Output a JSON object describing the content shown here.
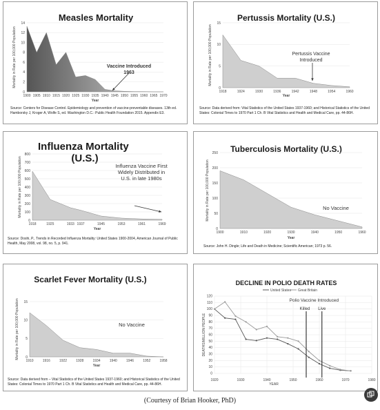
{
  "chart_data": [
    {
      "id": "measles",
      "type": "area",
      "title": "Measles Mortality",
      "xlabel": "Year",
      "ylabel": "Mortality in Rate per 100,000 Population",
      "x_ticks": [
        "1900",
        "1905",
        "1910",
        "1915",
        "1920",
        "1925",
        "1930",
        "1935",
        "1940",
        "1945",
        "1950",
        "1955",
        "1960",
        "1965",
        "1970"
      ],
      "y_ticks": [
        "0",
        "2",
        "4",
        "6",
        "8",
        "10",
        "12",
        "14"
      ],
      "x": [
        1900,
        1905,
        1910,
        1915,
        1920,
        1925,
        1930,
        1935,
        1940,
        1945,
        1950,
        1955,
        1960,
        1965,
        1970
      ],
      "values": [
        13.3,
        8,
        12,
        5.5,
        8,
        3,
        3.3,
        2.5,
        0.5,
        0.2,
        0.1,
        0.05,
        0.05,
        0,
        0
      ],
      "xlim": [
        1900,
        1970
      ],
      "ylim": [
        0,
        14
      ],
      "annotation": [
        "Vaccine Introduced",
        "1963"
      ],
      "source": "Source: Centers for Disease Control. Epidemiology and prevention of vaccine-preventable diseases. 13th ed. Hamborsky J, Kroger A, Wolfe S, ed. Washington D.C.: Public Health Foundation 2015. Appendix E3."
    },
    {
      "id": "pertussis",
      "type": "area",
      "title": "Pertussis Mortality (U.S.)",
      "xlabel": "Year",
      "ylabel": "Mortality in Rate per 100,000 Population",
      "x_ticks": [
        "1918",
        "1924",
        "1930",
        "1936",
        "1942",
        "1948",
        "1954",
        "1960"
      ],
      "y_ticks": [
        "0",
        "5",
        "10",
        "15"
      ],
      "x": [
        1918,
        1924,
        1930,
        1936,
        1942,
        1948,
        1954,
        1960
      ],
      "values": [
        12.2,
        6.3,
        5,
        2.2,
        2.2,
        1,
        0.5,
        0.2
      ],
      "xlim": [
        1918,
        1960
      ],
      "ylim": [
        0,
        15
      ],
      "annotation": [
        "Pertussis Vaccine",
        "Introduced"
      ],
      "source": "Source: Data derived from: Vital Statistics of the United States 1937-1960; and Historical Statistics of the United States: Colonial Times to 1970 Part 1 Ch. B Vital Statistics and Health and Medical Care, pp. 44-86H."
    },
    {
      "id": "influenza",
      "type": "area",
      "title": [
        "Influenza Mortality",
        "(U.S.)"
      ],
      "xlabel": "Year",
      "ylabel": "Mortality in Rate per 100,000 Population",
      "x_ticks": [
        "1918",
        "1925",
        "1933",
        "1937",
        "1945",
        "1953",
        "1961",
        "1969"
      ],
      "y_ticks": [
        "0",
        "100",
        "200",
        "300",
        "400",
        "500",
        "600",
        "700",
        "800"
      ],
      "x": [
        1918,
        1925,
        1933,
        1937,
        1945,
        1953,
        1961,
        1969
      ],
      "values": [
        590,
        250,
        150,
        120,
        50,
        25,
        15,
        10
      ],
      "xlim": [
        1918,
        1969
      ],
      "ylim": [
        0,
        800
      ],
      "annotation": [
        "Influenza Vaccine First",
        "Widely Distributed in",
        "U.S. in late 1980s"
      ],
      "source": "Source: Doshi, P., Trends in Recorded Influenza Mortality: United States 1900-2004, American Journal of Public Health, May 2008, vol. 98, no. 5, p. 941."
    },
    {
      "id": "tuberculosis",
      "type": "area",
      "title": "Tuberculosis Mortality (U.S.)",
      "xlabel": "Year",
      "ylabel": "Mortality in Rate per 100,000 Population",
      "x_ticks": [
        "1900",
        "1910",
        "1920",
        "1930",
        "1940",
        "1950",
        "1960"
      ],
      "y_ticks": [
        "0",
        "50",
        "100",
        "150",
        "200",
        "250"
      ],
      "x": [
        1900,
        1910,
        1920,
        1930,
        1940,
        1950,
        1960
      ],
      "values": [
        190,
        160,
        115,
        70,
        45,
        25,
        5
      ],
      "xlim": [
        1900,
        1960
      ],
      "ylim": [
        0,
        250
      ],
      "annotation": [
        "No Vaccine"
      ],
      "source": "Source: John H. Dingle; Life and Death in Medicine; Scientific American; 1973 p. 56."
    },
    {
      "id": "scarlet",
      "type": "area",
      "title": "Scarlet Fever Mortality (U.S.)",
      "xlabel": "Year",
      "ylabel": "Mortality in Rate per 100,000 Population",
      "x_ticks": [
        "1910",
        "1916",
        "1922",
        "1928",
        "1934",
        "1940",
        "1946",
        "1952",
        "1958"
      ],
      "y_ticks": [
        "0",
        "5",
        "10",
        "15"
      ],
      "x": [
        1910,
        1916,
        1922,
        1928,
        1934,
        1940,
        1946,
        1952,
        1958
      ],
      "values": [
        12,
        8.5,
        4.5,
        2.5,
        2,
        1,
        1,
        0.2,
        0
      ],
      "xlim": [
        1910,
        1958
      ],
      "ylim": [
        0,
        15
      ],
      "annotation": [
        "No Vaccine"
      ],
      "source": "Source: Data derived from – Vital Statistics of the United States 1937-1960; and Historical Statistics of the United States: Colonial Times to 1970 Part 1 Ch. B Vital Statistics and Health and Medical Care, pp. 44-86H."
    },
    {
      "id": "polio",
      "type": "line",
      "title": "DECLINE IN POLIO DEATH RATES",
      "xlabel": "YEAR",
      "ylabel": "DEATHS/MILLION PEOPLE",
      "x_ticks": [
        "1920",
        "1930",
        "1940",
        "1950",
        "1960",
        "1970",
        "1980"
      ],
      "y_ticks": [
        "0",
        "10",
        "20",
        "30",
        "40",
        "50",
        "60",
        "70",
        "80",
        "90",
        "100",
        "110",
        "120"
      ],
      "xlim": [
        1920,
        1980
      ],
      "ylim": [
        0,
        120
      ],
      "series": [
        {
          "name": "United States",
          "color": "#555555",
          "x": [
            1920,
            1924,
            1928,
            1932,
            1936,
            1940,
            1944,
            1948,
            1952,
            1956,
            1960,
            1964,
            1968,
            1972
          ],
          "values": [
            100,
            86,
            84,
            53,
            51,
            55,
            53,
            46,
            38,
            25,
            15,
            8,
            5,
            4
          ]
        },
        {
          "name": "Great Britain",
          "color": "#999999",
          "x": [
            1920,
            1924,
            1928,
            1932,
            1936,
            1940,
            1944,
            1948,
            1952,
            1956,
            1960,
            1964,
            1968,
            1972
          ],
          "values": [
            100,
            111,
            89,
            80,
            68,
            73,
            57,
            55,
            50,
            34,
            20,
            12,
            6,
            4
          ]
        }
      ],
      "annotation": [
        "Polio Vaccine Introduced"
      ],
      "markers": [
        {
          "label": "Killed",
          "x": 1955
        },
        {
          "label": "Live",
          "x": 1961
        }
      ]
    }
  ],
  "credit": "(Courtesy of Brian Hooker, PhD)",
  "share_icon": "share-icon"
}
